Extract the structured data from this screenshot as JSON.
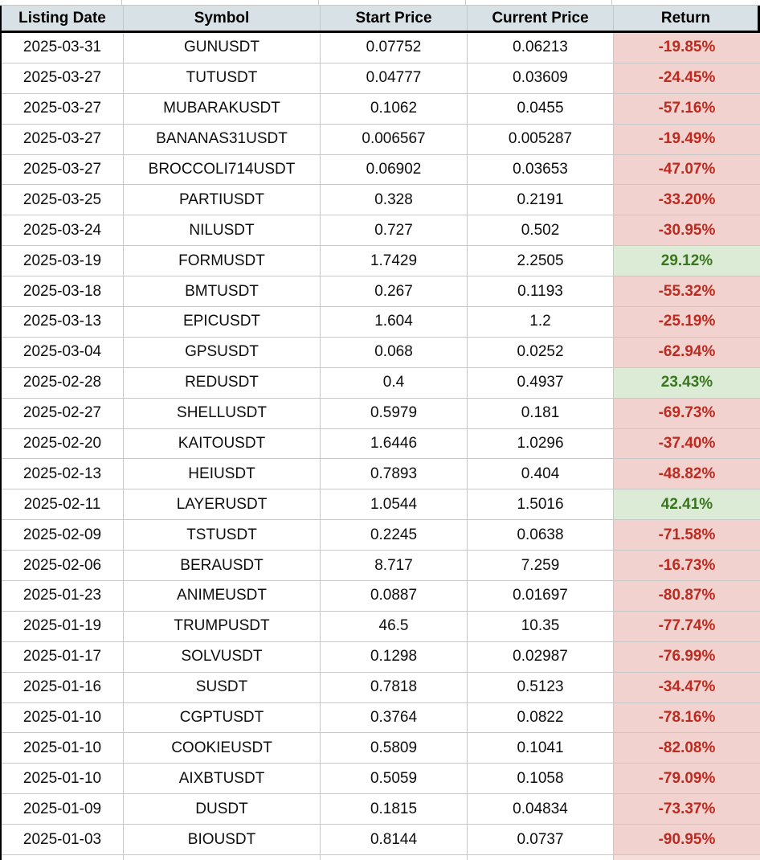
{
  "table": {
    "columns": [
      "Listing Date",
      "Symbol",
      "Start Price",
      "Current Price",
      "Return"
    ],
    "rows": [
      {
        "date": "2025-03-31",
        "symbol": "GUNUSDT",
        "start": "0.07752",
        "current": "0.06213",
        "return": "-19.85%"
      },
      {
        "date": "2025-03-27",
        "symbol": "TUTUSDT",
        "start": "0.04777",
        "current": "0.03609",
        "return": "-24.45%"
      },
      {
        "date": "2025-03-27",
        "symbol": "MUBARAKUSDT",
        "start": "0.1062",
        "current": "0.0455",
        "return": "-57.16%"
      },
      {
        "date": "2025-03-27",
        "symbol": "BANANAS31USDT",
        "start": "0.006567",
        "current": "0.005287",
        "return": "-19.49%"
      },
      {
        "date": "2025-03-27",
        "symbol": "BROCCOLI714USDT",
        "start": "0.06902",
        "current": "0.03653",
        "return": "-47.07%"
      },
      {
        "date": "2025-03-25",
        "symbol": "PARTIUSDT",
        "start": "0.328",
        "current": "0.2191",
        "return": "-33.20%"
      },
      {
        "date": "2025-03-24",
        "symbol": "NILUSDT",
        "start": "0.727",
        "current": "0.502",
        "return": "-30.95%"
      },
      {
        "date": "2025-03-19",
        "symbol": "FORMUSDT",
        "start": "1.7429",
        "current": "2.2505",
        "return": "29.12%"
      },
      {
        "date": "2025-03-18",
        "symbol": "BMTUSDT",
        "start": "0.267",
        "current": "0.1193",
        "return": "-55.32%"
      },
      {
        "date": "2025-03-13",
        "symbol": "EPICUSDT",
        "start": "1.604",
        "current": "1.2",
        "return": "-25.19%"
      },
      {
        "date": "2025-03-04",
        "symbol": "GPSUSDT",
        "start": "0.068",
        "current": "0.0252",
        "return": "-62.94%"
      },
      {
        "date": "2025-02-28",
        "symbol": "REDUSDT",
        "start": "0.4",
        "current": "0.4937",
        "return": "23.43%"
      },
      {
        "date": "2025-02-27",
        "symbol": "SHELLUSDT",
        "start": "0.5979",
        "current": "0.181",
        "return": "-69.73%"
      },
      {
        "date": "2025-02-20",
        "symbol": "KAITOUSDT",
        "start": "1.6446",
        "current": "1.0296",
        "return": "-37.40%"
      },
      {
        "date": "2025-02-13",
        "symbol": "HEIUSDT",
        "start": "0.7893",
        "current": "0.404",
        "return": "-48.82%"
      },
      {
        "date": "2025-02-11",
        "symbol": "LAYERUSDT",
        "start": "1.0544",
        "current": "1.5016",
        "return": "42.41%"
      },
      {
        "date": "2025-02-09",
        "symbol": "TSTUSDT",
        "start": "0.2245",
        "current": "0.0638",
        "return": "-71.58%"
      },
      {
        "date": "2025-02-06",
        "symbol": "BERAUSDT",
        "start": "8.717",
        "current": "7.259",
        "return": "-16.73%"
      },
      {
        "date": "2025-01-23",
        "symbol": "ANIMEUSDT",
        "start": "0.0887",
        "current": "0.01697",
        "return": "-80.87%"
      },
      {
        "date": "2025-01-19",
        "symbol": "TRUMPUSDT",
        "start": "46.5",
        "current": "10.35",
        "return": "-77.74%"
      },
      {
        "date": "2025-01-17",
        "symbol": "SOLVUSDT",
        "start": "0.1298",
        "current": "0.02987",
        "return": "-76.99%"
      },
      {
        "date": "2025-01-16",
        "symbol": "SUSDT",
        "start": "0.7818",
        "current": "0.5123",
        "return": "-34.47%"
      },
      {
        "date": "2025-01-10",
        "symbol": "CGPTUSDT",
        "start": "0.3764",
        "current": "0.0822",
        "return": "-78.16%"
      },
      {
        "date": "2025-01-10",
        "symbol": "COOKIEUSDT",
        "start": "0.5809",
        "current": "0.1041",
        "return": "-82.08%"
      },
      {
        "date": "2025-01-10",
        "symbol": "AIXBTUSDT",
        "start": "0.5059",
        "current": "0.1058",
        "return": "-79.09%"
      },
      {
        "date": "2025-01-09",
        "symbol": "DUSDT",
        "start": "0.1815",
        "current": "0.04834",
        "return": "-73.37%"
      },
      {
        "date": "2025-01-03",
        "symbol": "BIOUSDT",
        "start": "0.8144",
        "current": "0.0737",
        "return": "-90.95%"
      }
    ]
  },
  "colors": {
    "header_bg": "#d7e1e6",
    "header_border": "#000000",
    "grid_line": "#c8c8c8",
    "negative_text": "#bd2a20",
    "negative_bg": "#f2d2ce",
    "negative_bg_light": "#f6dedb",
    "positive_text": "#38761d",
    "positive_bg": "#dcebd5"
  }
}
